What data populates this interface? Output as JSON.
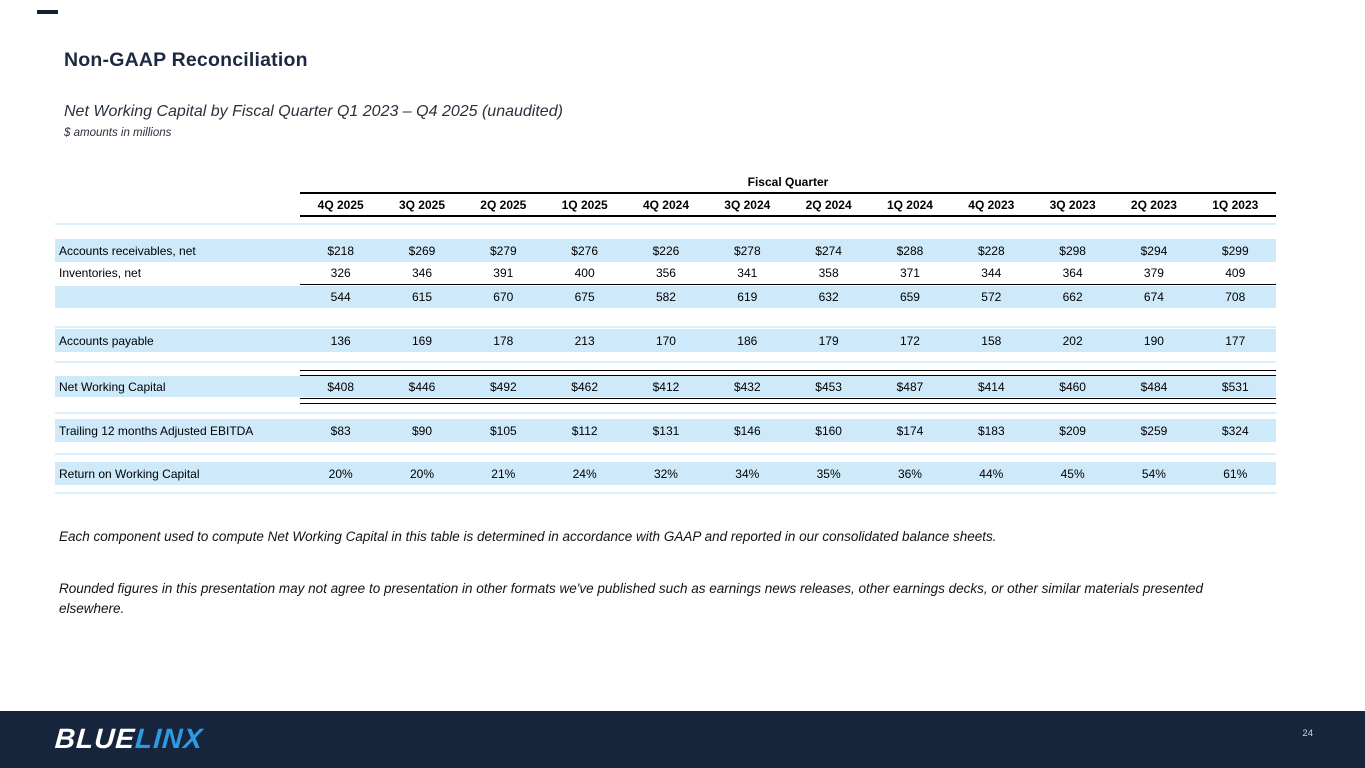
{
  "slide": {
    "title": "Non-GAAP Reconciliation",
    "subtitle": "Net Working Capital by Fiscal Quarter  Q1 2023 – Q4 2025 (unaudited)",
    "units_note": "$ amounts in millions"
  },
  "table": {
    "group_header": "Fiscal Quarter",
    "columns": [
      "4Q 2025",
      "3Q 2025",
      "2Q 2025",
      "1Q 2025",
      "4Q 2024",
      "3Q 2024",
      "2Q 2024",
      "1Q 2024",
      "4Q 2023",
      "3Q 2023",
      "2Q 2023",
      "1Q 2023"
    ],
    "rows": [
      {
        "label": "Accounts receivables, net",
        "style": "band",
        "values": [
          "$218",
          "$269",
          "$279",
          "$276",
          "$226",
          "$278",
          "$274",
          "$288",
          "$228",
          "$298",
          "$294",
          "$299"
        ]
      },
      {
        "label": "Inventories, net",
        "style": "plain",
        "values": [
          "326",
          "346",
          "391",
          "400",
          "356",
          "341",
          "358",
          "371",
          "344",
          "364",
          "379",
          "409"
        ]
      },
      {
        "label": "",
        "style": "band",
        "values": [
          "544",
          "615",
          "670",
          "675",
          "582",
          "619",
          "632",
          "659",
          "572",
          "662",
          "674",
          "708"
        ]
      },
      {
        "label": "Accounts payable",
        "style": "band",
        "values": [
          "136",
          "169",
          "178",
          "213",
          "170",
          "186",
          "179",
          "172",
          "158",
          "202",
          "190",
          "177"
        ]
      },
      {
        "label": "Net Working Capital",
        "style": "band",
        "values": [
          "$408",
          "$446",
          "$492",
          "$462",
          "$412",
          "$432",
          "$453",
          "$487",
          "$414",
          "$460",
          "$484",
          "$531"
        ]
      },
      {
        "label": "Trailing 12 months Adjusted EBITDA",
        "style": "band",
        "values": [
          "$83",
          "$90",
          "$105",
          "$112",
          "$131",
          "$146",
          "$160",
          "$174",
          "$183",
          "$209",
          "$259",
          "$324"
        ]
      },
      {
        "label": "Return on Working Capital",
        "style": "band",
        "values": [
          "20%",
          "20%",
          "21%",
          "24%",
          "32%",
          "34%",
          "35%",
          "36%",
          "44%",
          "45%",
          "54%",
          "61%"
        ]
      }
    ]
  },
  "footnotes": [
    "Each component used to compute Net Working Capital in this table is determined in accordance with GAAP and reported in our consolidated balance sheets.",
    "Rounded figures in this presentation may not agree to presentation in other formats we've published such as earnings news releases, other earnings decks, or other similar materials presented elsewhere."
  ],
  "footer": {
    "logo_blue": "BLUE",
    "logo_linx": "LINX",
    "page_number": "24"
  },
  "colors": {
    "band_blue": "#cee9f9",
    "accent_blue": "#2d9be4",
    "footer_navy": "#16253b",
    "title_navy": "#1b2a42"
  }
}
